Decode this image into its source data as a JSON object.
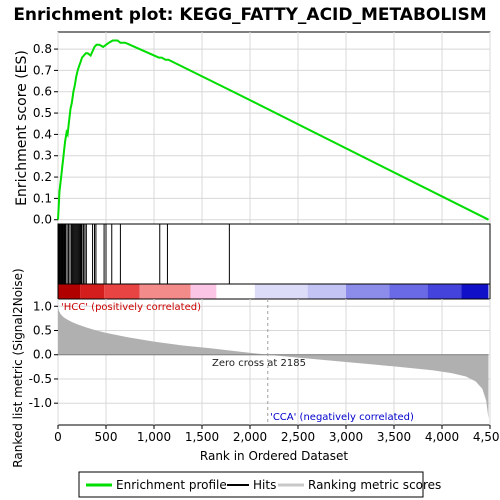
{
  "title": "Enrichment plot: KEGG_FATTY_ACID_METABOLISM",
  "colors": {
    "es_line": "#00dd00",
    "hit_line": "#000000",
    "metric_fill": "#b0b0b0",
    "grid": "#d8d8d8",
    "pos_label": "#cc0000",
    "neg_label": "#0000cc"
  },
  "chart_data": [
    {
      "type": "line",
      "name": "enrichment-profile",
      "ylabel": "Enrichment score (ES)",
      "xlim": [
        0,
        4500
      ],
      "ylim": [
        -0.02,
        0.88
      ],
      "yticks": [
        0.0,
        0.1,
        0.2,
        0.3,
        0.4,
        0.5,
        0.6,
        0.7,
        0.8
      ],
      "ytick_labels": [
        "0.0",
        "0.1",
        "0.2",
        "0.3",
        "0.4",
        "0.5",
        "0.6",
        "0.7",
        "0.8"
      ],
      "grid": true,
      "x": [
        0,
        8,
        15,
        25,
        35,
        45,
        55,
        65,
        75,
        90,
        100,
        115,
        130,
        145,
        160,
        175,
        190,
        205,
        220,
        235,
        250,
        270,
        290,
        310,
        340,
        360,
        380,
        400,
        430,
        470,
        500,
        530,
        570,
        620,
        650,
        700,
        1050,
        1080,
        1120,
        1150,
        1780,
        4484
      ],
      "y": [
        0.0,
        0.07,
        0.13,
        0.17,
        0.21,
        0.25,
        0.29,
        0.33,
        0.37,
        0.41,
        0.4,
        0.46,
        0.52,
        0.55,
        0.6,
        0.63,
        0.67,
        0.7,
        0.72,
        0.74,
        0.76,
        0.77,
        0.78,
        0.78,
        0.77,
        0.79,
        0.81,
        0.82,
        0.82,
        0.81,
        0.82,
        0.83,
        0.84,
        0.84,
        0.83,
        0.83,
        0.76,
        0.76,
        0.75,
        0.75,
        0.61,
        0.0
      ]
    },
    {
      "type": "scatter",
      "name": "hits",
      "x": [
        5,
        10,
        15,
        20,
        28,
        35,
        42,
        50,
        58,
        65,
        72,
        80,
        95,
        110,
        125,
        140,
        150,
        160,
        170,
        180,
        190,
        200,
        210,
        220,
        230,
        240,
        250,
        265,
        280,
        295,
        360,
        380,
        395,
        480,
        500,
        560,
        650,
        1060,
        1140,
        1785
      ]
    },
    {
      "type": "heatmap",
      "name": "rank-colorbar",
      "x": [
        0,
        230,
        480,
        850,
        1380,
        1650,
        2050,
        2600,
        3000,
        3450,
        3850,
        4200,
        4484
      ],
      "colors": [
        "#b00000",
        "#d41d1d",
        "#e84444",
        "#f38b8b",
        "#fbc6e6",
        "#ffffff",
        "#dcdcf8",
        "#c4c4f4",
        "#8c8ceb",
        "#6a6ae6",
        "#4444dd",
        "#1010c8"
      ]
    },
    {
      "type": "area",
      "name": "ranked-metric",
      "xlabel": "Rank in Ordered Dataset",
      "ylabel": "Ranked list metric (Signal2Noise)",
      "xlim": [
        0,
        4500
      ],
      "ylim": [
        -1.45,
        1.15
      ],
      "xticks": [
        0,
        500,
        1000,
        1500,
        2000,
        2500,
        3000,
        3500,
        4000,
        4500
      ],
      "xtick_labels": [
        "0",
        "500",
        "1,000",
        "1,500",
        "2,000",
        "2,500",
        "3,000",
        "3,500",
        "4,000",
        "4,500"
      ],
      "yticks": [
        -1.0,
        -0.5,
        0.0,
        0.5,
        1.0
      ],
      "ytick_labels": [
        "-1.0",
        "-0.5",
        "0.0",
        "0.5",
        "1.0"
      ],
      "grid": true,
      "x": [
        0,
        10,
        30,
        60,
        100,
        150,
        200,
        300,
        400,
        500,
        700,
        1000,
        1300,
        1600,
        1900,
        2185,
        2500,
        3000,
        3500,
        3900,
        4100,
        4250,
        4350,
        4420,
        4460,
        4484
      ],
      "y": [
        0.98,
        0.9,
        0.83,
        0.77,
        0.72,
        0.67,
        0.63,
        0.56,
        0.5,
        0.45,
        0.37,
        0.27,
        0.19,
        0.13,
        0.06,
        0.0,
        -0.06,
        -0.15,
        -0.24,
        -0.32,
        -0.38,
        -0.45,
        -0.55,
        -0.7,
        -0.95,
        -1.32
      ],
      "zero_cross": 2185,
      "annotations": {
        "zero_cross": "Zero cross at 2185",
        "positive": "'HCC' (positively correlated)",
        "negative": "'CCA' (negatively correlated)"
      }
    }
  ],
  "legend": {
    "position": "bottom",
    "items": [
      {
        "label": "Enrichment profile",
        "color": "#00dd00"
      },
      {
        "label": "Hits",
        "color": "#000000"
      },
      {
        "label": "Ranking metric scores",
        "color": "#c8c8c8"
      }
    ]
  }
}
